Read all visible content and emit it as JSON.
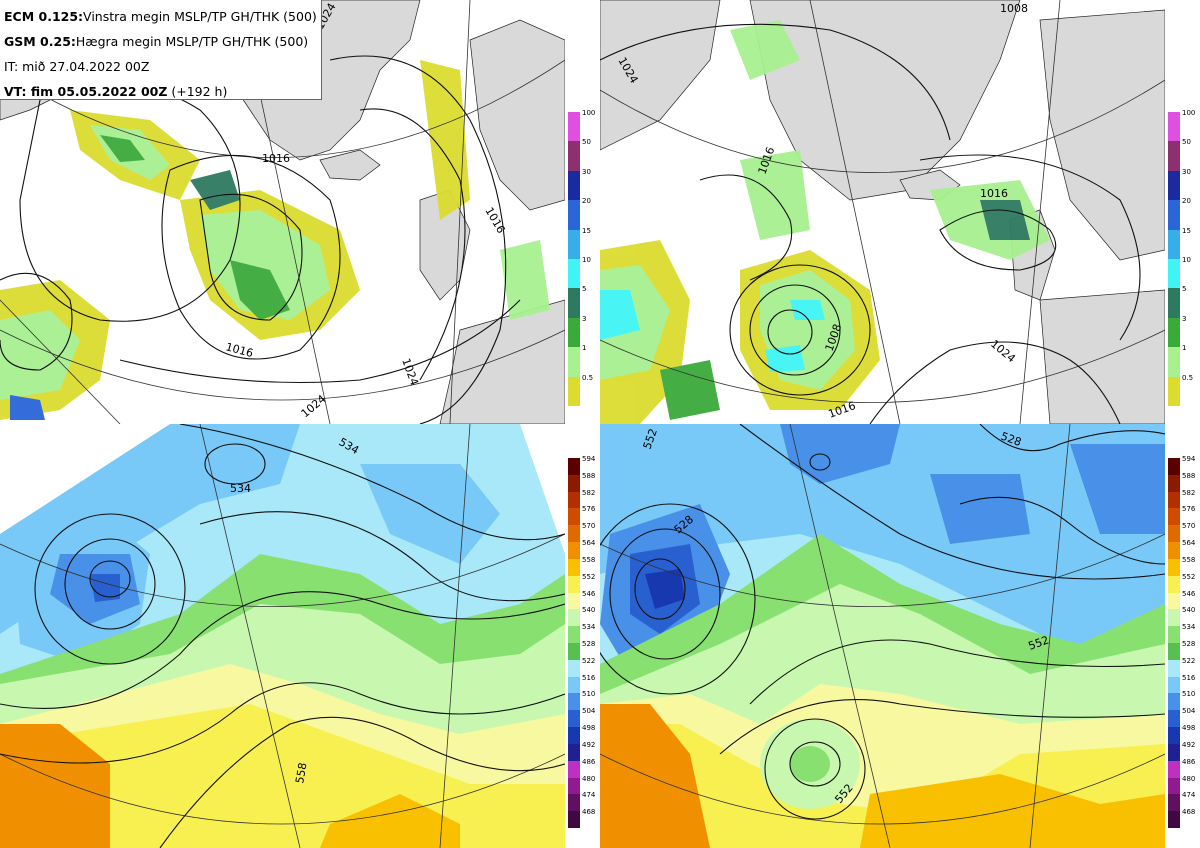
{
  "info": {
    "line1_bold": "ECM 0.125:",
    "line1_text": "Vinstra megin MSLP/TP GH/THK (500)",
    "line2_bold": "GSM 0.25:",
    "line2_text": "Hægra megin MSLP/TP GH/THK (500)",
    "line3_text": "IT: mið 27.04.2022 00Z",
    "line4_bold": "VT: fim 05.05.2022 00Z",
    "line4_text": " (+192 h)"
  },
  "precip_colorbar": {
    "ticks": [
      "100",
      "50",
      "30",
      "20",
      "15",
      "10",
      "5",
      "3",
      "1",
      "0.5"
    ],
    "colors": [
      "#e050e0",
      "#8c3070",
      "#1a2aa0",
      "#2a66d8",
      "#38aee8",
      "#40f4f4",
      "#2e7a60",
      "#3aaa3a",
      "#a8f090",
      "#dcdc30"
    ]
  },
  "thk_colorbar": {
    "ticks": [
      "594",
      "588",
      "582",
      "576",
      "570",
      "564",
      "558",
      "552",
      "546",
      "540",
      "534",
      "528",
      "522",
      "516",
      "510",
      "504",
      "498",
      "492",
      "486",
      "480",
      "474",
      "468"
    ],
    "colors": [
      "#5a0000",
      "#8a1a00",
      "#b23000",
      "#d04a00",
      "#e06a00",
      "#f09000",
      "#f8c000",
      "#f8f050",
      "#f8f8a0",
      "#c8f8b0",
      "#88e070",
      "#58c050",
      "#a8e8f8",
      "#78c8f8",
      "#4890e8",
      "#2860d0",
      "#1838b0",
      "#202090",
      "#c030c0",
      "#901a90",
      "#601060",
      "#400840"
    ]
  },
  "mslp_labels_ecm": [
    "1016",
    "1024",
    "1016",
    "1016",
    "1024",
    "1024"
  ],
  "mslp_labels_gsm": [
    "1024",
    "1008",
    "1016",
    "1008",
    "1016",
    "1024",
    "1016"
  ],
  "thk_labels_ecm": [
    "534",
    "534",
    "558"
  ],
  "thk_labels_gsm": [
    "552",
    "528",
    "528",
    "552",
    "552"
  ]
}
